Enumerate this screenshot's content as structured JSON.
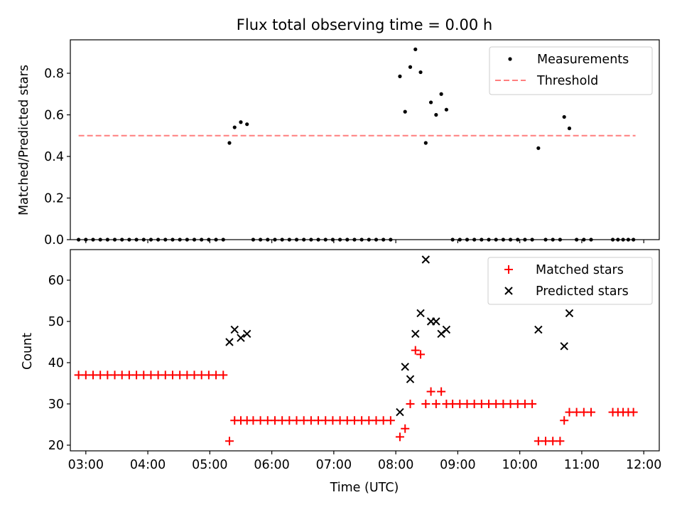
{
  "chart_data": [
    {
      "type": "scatter",
      "title": "Flux total observing time = 0.00 h",
      "xlabel": "",
      "ylabel": "Matched/Predicted stars",
      "ylim": [
        0,
        0.95
      ],
      "yticks": [
        "0.0",
        "0.2",
        "0.4",
        "0.6",
        "0.8"
      ],
      "xticks": [
        "03:00",
        "04:00",
        "05:00",
        "06:00",
        "07:00",
        "08:00",
        "09:00",
        "10:00",
        "11:00",
        "12:00"
      ],
      "xlim": [
        "02:45",
        "12:15"
      ],
      "legend_position": "top-right",
      "series": [
        {
          "name": "Measurements",
          "marker": "dot",
          "color": "#000000",
          "points": [
            [
              "02:53",
              0
            ],
            [
              "03:00",
              0
            ],
            [
              "03:07",
              0
            ],
            [
              "03:14",
              0
            ],
            [
              "03:21",
              0
            ],
            [
              "03:28",
              0
            ],
            [
              "03:35",
              0
            ],
            [
              "03:42",
              0
            ],
            [
              "03:49",
              0
            ],
            [
              "03:56",
              0
            ],
            [
              "04:03",
              0
            ],
            [
              "04:10",
              0
            ],
            [
              "04:17",
              0
            ],
            [
              "04:24",
              0
            ],
            [
              "04:31",
              0
            ],
            [
              "04:38",
              0
            ],
            [
              "04:45",
              0
            ],
            [
              "04:52",
              0
            ],
            [
              "04:59",
              0
            ],
            [
              "05:06",
              0
            ],
            [
              "05:13",
              0
            ],
            [
              "05:19",
              0.465
            ],
            [
              "05:24",
              0.54
            ],
            [
              "05:30",
              0.565
            ],
            [
              "05:36",
              0.555
            ],
            [
              "05:42",
              0
            ],
            [
              "05:49",
              0
            ],
            [
              "05:56",
              0
            ],
            [
              "06:03",
              0
            ],
            [
              "06:10",
              0
            ],
            [
              "06:17",
              0
            ],
            [
              "06:24",
              0
            ],
            [
              "06:31",
              0
            ],
            [
              "06:38",
              0
            ],
            [
              "06:45",
              0
            ],
            [
              "06:52",
              0
            ],
            [
              "06:59",
              0
            ],
            [
              "07:06",
              0
            ],
            [
              "07:13",
              0
            ],
            [
              "07:20",
              0
            ],
            [
              "07:27",
              0
            ],
            [
              "07:34",
              0
            ],
            [
              "07:41",
              0
            ],
            [
              "07:48",
              0
            ],
            [
              "07:55",
              0
            ],
            [
              "08:04",
              0.785
            ],
            [
              "08:09",
              0.615
            ],
            [
              "08:14",
              0.83
            ],
            [
              "08:19",
              0.915
            ],
            [
              "08:24",
              0.805
            ],
            [
              "08:29",
              0.465
            ],
            [
              "08:34",
              0.66
            ],
            [
              "08:39",
              0.6
            ],
            [
              "08:44",
              0.7
            ],
            [
              "08:49",
              0.625
            ],
            [
              "08:55",
              0
            ],
            [
              "09:02",
              0
            ],
            [
              "09:09",
              0
            ],
            [
              "09:16",
              0
            ],
            [
              "09:23",
              0
            ],
            [
              "09:30",
              0
            ],
            [
              "09:37",
              0
            ],
            [
              "09:44",
              0
            ],
            [
              "09:51",
              0
            ],
            [
              "09:58",
              0
            ],
            [
              "10:05",
              0
            ],
            [
              "10:12",
              0
            ],
            [
              "10:18",
              0.44
            ],
            [
              "10:25",
              0
            ],
            [
              "10:32",
              0
            ],
            [
              "10:39",
              0
            ],
            [
              "10:43",
              0.59
            ],
            [
              "10:48",
              0.535
            ],
            [
              "10:55",
              0
            ],
            [
              "11:02",
              0
            ],
            [
              "11:09",
              0
            ],
            [
              "11:30",
              0
            ],
            [
              "11:35",
              0
            ],
            [
              "11:40",
              0
            ],
            [
              "11:45",
              0
            ],
            [
              "11:50",
              0
            ]
          ]
        },
        {
          "name": "Threshold",
          "marker": "dashed-line",
          "color": "#ff7f7f",
          "points": [
            [
              "02:53",
              0.5
            ],
            [
              "11:52",
              0.5
            ]
          ]
        }
      ]
    },
    {
      "type": "scatter",
      "title": "",
      "xlabel": "Time (UTC)",
      "ylabel": "Count",
      "ylim": [
        19,
        68
      ],
      "yticks": [
        "20",
        "30",
        "40",
        "50",
        "60"
      ],
      "xticks": [
        "03:00",
        "04:00",
        "05:00",
        "06:00",
        "07:00",
        "08:00",
        "09:00",
        "10:00",
        "11:00",
        "12:00"
      ],
      "xlim": [
        "02:45",
        "12:15"
      ],
      "legend_position": "top-right",
      "series": [
        {
          "name": "Matched stars",
          "marker": "plus",
          "color": "#ff0000",
          "points": [
            [
              "02:53",
              37
            ],
            [
              "03:00",
              37
            ],
            [
              "03:07",
              37
            ],
            [
              "03:14",
              37
            ],
            [
              "03:21",
              37
            ],
            [
              "03:28",
              37
            ],
            [
              "03:35",
              37
            ],
            [
              "03:42",
              37
            ],
            [
              "03:49",
              37
            ],
            [
              "03:56",
              37
            ],
            [
              "04:03",
              37
            ],
            [
              "04:10",
              37
            ],
            [
              "04:17",
              37
            ],
            [
              "04:24",
              37
            ],
            [
              "04:31",
              37
            ],
            [
              "04:38",
              37
            ],
            [
              "04:45",
              37
            ],
            [
              "04:52",
              37
            ],
            [
              "04:59",
              37
            ],
            [
              "05:06",
              37
            ],
            [
              "05:13",
              37
            ],
            [
              "05:19",
              21
            ],
            [
              "05:24",
              26
            ],
            [
              "05:30",
              26
            ],
            [
              "05:36",
              26
            ],
            [
              "05:42",
              26
            ],
            [
              "05:49",
              26
            ],
            [
              "05:56",
              26
            ],
            [
              "06:03",
              26
            ],
            [
              "06:10",
              26
            ],
            [
              "06:17",
              26
            ],
            [
              "06:24",
              26
            ],
            [
              "06:31",
              26
            ],
            [
              "06:38",
              26
            ],
            [
              "06:45",
              26
            ],
            [
              "06:52",
              26
            ],
            [
              "06:59",
              26
            ],
            [
              "07:06",
              26
            ],
            [
              "07:13",
              26
            ],
            [
              "07:20",
              26
            ],
            [
              "07:27",
              26
            ],
            [
              "07:34",
              26
            ],
            [
              "07:41",
              26
            ],
            [
              "07:48",
              26
            ],
            [
              "07:55",
              26
            ],
            [
              "08:04",
              22
            ],
            [
              "08:09",
              24
            ],
            [
              "08:14",
              30
            ],
            [
              "08:19",
              43
            ],
            [
              "08:24",
              42
            ],
            [
              "08:29",
              30
            ],
            [
              "08:34",
              33
            ],
            [
              "08:39",
              30
            ],
            [
              "08:44",
              33
            ],
            [
              "08:49",
              30
            ],
            [
              "08:55",
              30
            ],
            [
              "09:02",
              30
            ],
            [
              "09:09",
              30
            ],
            [
              "09:16",
              30
            ],
            [
              "09:23",
              30
            ],
            [
              "09:30",
              30
            ],
            [
              "09:37",
              30
            ],
            [
              "09:44",
              30
            ],
            [
              "09:51",
              30
            ],
            [
              "09:58",
              30
            ],
            [
              "10:05",
              30
            ],
            [
              "10:12",
              30
            ],
            [
              "10:18",
              21
            ],
            [
              "10:25",
              21
            ],
            [
              "10:32",
              21
            ],
            [
              "10:39",
              21
            ],
            [
              "10:43",
              26
            ],
            [
              "10:48",
              28
            ],
            [
              "10:55",
              28
            ],
            [
              "11:02",
              28
            ],
            [
              "11:09",
              28
            ],
            [
              "11:30",
              28
            ],
            [
              "11:35",
              28
            ],
            [
              "11:40",
              28
            ],
            [
              "11:45",
              28
            ],
            [
              "11:50",
              28
            ]
          ]
        },
        {
          "name": "Predicted stars",
          "marker": "x",
          "color": "#000000",
          "points": [
            [
              "05:19",
              45
            ],
            [
              "05:24",
              48
            ],
            [
              "05:30",
              46
            ],
            [
              "05:36",
              47
            ],
            [
              "08:04",
              28
            ],
            [
              "08:09",
              39
            ],
            [
              "08:14",
              36
            ],
            [
              "08:19",
              47
            ],
            [
              "08:24",
              52
            ],
            [
              "08:29",
              65
            ],
            [
              "08:34",
              50
            ],
            [
              "08:39",
              50
            ],
            [
              "08:44",
              47
            ],
            [
              "08:49",
              48
            ],
            [
              "10:18",
              48
            ],
            [
              "10:43",
              44
            ],
            [
              "10:48",
              52
            ]
          ]
        }
      ]
    }
  ]
}
